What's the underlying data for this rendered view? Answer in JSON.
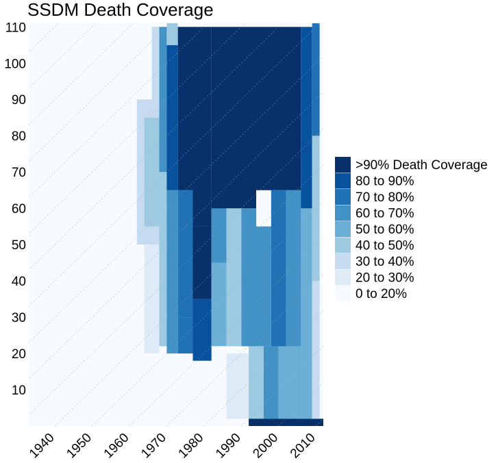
{
  "chart_data": {
    "type": "heatmap",
    "title": "SSDM Death Coverage",
    "xlabel": "",
    "ylabel": "",
    "xlim": [
      1933,
      2012
    ],
    "ylim": [
      0,
      110
    ],
    "x_ticks": [
      1940,
      1950,
      1960,
      1970,
      1980,
      1990,
      2000,
      2010
    ],
    "y_ticks": [
      10,
      20,
      30,
      40,
      50,
      60,
      70,
      80,
      90,
      100,
      110
    ],
    "grid": "diagonal cohort lines, dotted",
    "legend_position": "right",
    "legend": [
      {
        "label": ">90% Death Coverage",
        "color": "#08306b"
      },
      {
        "label": "80 to 90%",
        "color": "#08519c"
      },
      {
        "label": "70 to 80%",
        "color": "#2171b5"
      },
      {
        "label": "60 to 70%",
        "color": "#4292c6"
      },
      {
        "label": "50 to 60%",
        "color": "#6baed6"
      },
      {
        "label": "40 to 50%",
        "color": "#9ecae1"
      },
      {
        "label": "30 to 40%",
        "color": "#c6dbef"
      },
      {
        "label": "20 to 30%",
        "color": "#deebf7"
      },
      {
        "label": "0 to 20%",
        "color": "#f7fbff"
      }
    ],
    "regions": [
      {
        "x": [
          1933,
          2012
        ],
        "y": [
          0,
          111
        ],
        "level": 8
      },
      {
        "x": [
          1962,
          1968
        ],
        "y": [
          50,
          90
        ],
        "level": 6
      },
      {
        "x": [
          1964,
          1968
        ],
        "y": [
          55,
          85
        ],
        "level": 5
      },
      {
        "x": [
          1966,
          1968
        ],
        "y": [
          85,
          110
        ],
        "level": 6
      },
      {
        "x": [
          1964,
          1968
        ],
        "y": [
          20,
          50
        ],
        "level": 7
      },
      {
        "x": [
          1968,
          1970
        ],
        "y": [
          22,
          70
        ],
        "level": 5
      },
      {
        "x": [
          1968,
          1970
        ],
        "y": [
          70,
          110
        ],
        "level": 3
      },
      {
        "x": [
          1970,
          1973
        ],
        "y": [
          20,
          65
        ],
        "level": 3
      },
      {
        "x": [
          1970,
          1973
        ],
        "y": [
          65,
          105
        ],
        "level": 1
      },
      {
        "x": [
          1970,
          1973
        ],
        "y": [
          105,
          111
        ],
        "level": 5
      },
      {
        "x": [
          1973,
          1977
        ],
        "y": [
          20,
          30
        ],
        "level": 2
      },
      {
        "x": [
          1973,
          1977
        ],
        "y": [
          30,
          65
        ],
        "level": 2
      },
      {
        "x": [
          1973,
          1977
        ],
        "y": [
          65,
          110
        ],
        "level": 0
      },
      {
        "x": [
          1977,
          1982
        ],
        "y": [
          18,
          35
        ],
        "level": 1
      },
      {
        "x": [
          1977,
          1982
        ],
        "y": [
          35,
          55
        ],
        "level": 0
      },
      {
        "x": [
          1977,
          1982
        ],
        "y": [
          55,
          110
        ],
        "level": 0
      },
      {
        "x": [
          1982,
          1986
        ],
        "y": [
          22,
          45
        ],
        "level": 4
      },
      {
        "x": [
          1982,
          1986
        ],
        "y": [
          45,
          65
        ],
        "level": 3
      },
      {
        "x": [
          1986,
          1990
        ],
        "y": [
          22,
          60
        ],
        "level": 5
      },
      {
        "x": [
          1990,
          1994
        ],
        "y": [
          22,
          60
        ],
        "level": 3
      },
      {
        "x": [
          1982,
          1994
        ],
        "y": [
          60,
          110
        ],
        "level": 0
      },
      {
        "x": [
          1994,
          1998
        ],
        "y": [
          22,
          55
        ],
        "level": 3
      },
      {
        "x": [
          1998,
          2002
        ],
        "y": [
          22,
          65
        ],
        "level": 2
      },
      {
        "x": [
          2002,
          2006
        ],
        "y": [
          22,
          65
        ],
        "level": 3
      },
      {
        "x": [
          1994,
          2006
        ],
        "y": [
          65,
          110
        ],
        "level": 0
      },
      {
        "x": [
          1986,
          1992
        ],
        "y": [
          2,
          20
        ],
        "level": 7
      },
      {
        "x": [
          1992,
          1996
        ],
        "y": [
          2,
          22
        ],
        "level": 5
      },
      {
        "x": [
          1996,
          2000
        ],
        "y": [
          2,
          22
        ],
        "level": 3
      },
      {
        "x": [
          2000,
          2006
        ],
        "y": [
          2,
          22
        ],
        "level": 4
      },
      {
        "x": [
          1992,
          2012
        ],
        "y": [
          0,
          2
        ],
        "level": 0
      },
      {
        "x": [
          2006,
          2009
        ],
        "y": [
          2,
          60
        ],
        "level": 4
      },
      {
        "x": [
          2006,
          2009
        ],
        "y": [
          60,
          110
        ],
        "level": 1
      },
      {
        "x": [
          2009,
          2011
        ],
        "y": [
          2,
          40
        ],
        "level": 6
      },
      {
        "x": [
          2009,
          2011
        ],
        "y": [
          40,
          80
        ],
        "level": 5
      },
      {
        "x": [
          2009,
          2011
        ],
        "y": [
          80,
          111
        ],
        "level": 2
      }
    ]
  }
}
